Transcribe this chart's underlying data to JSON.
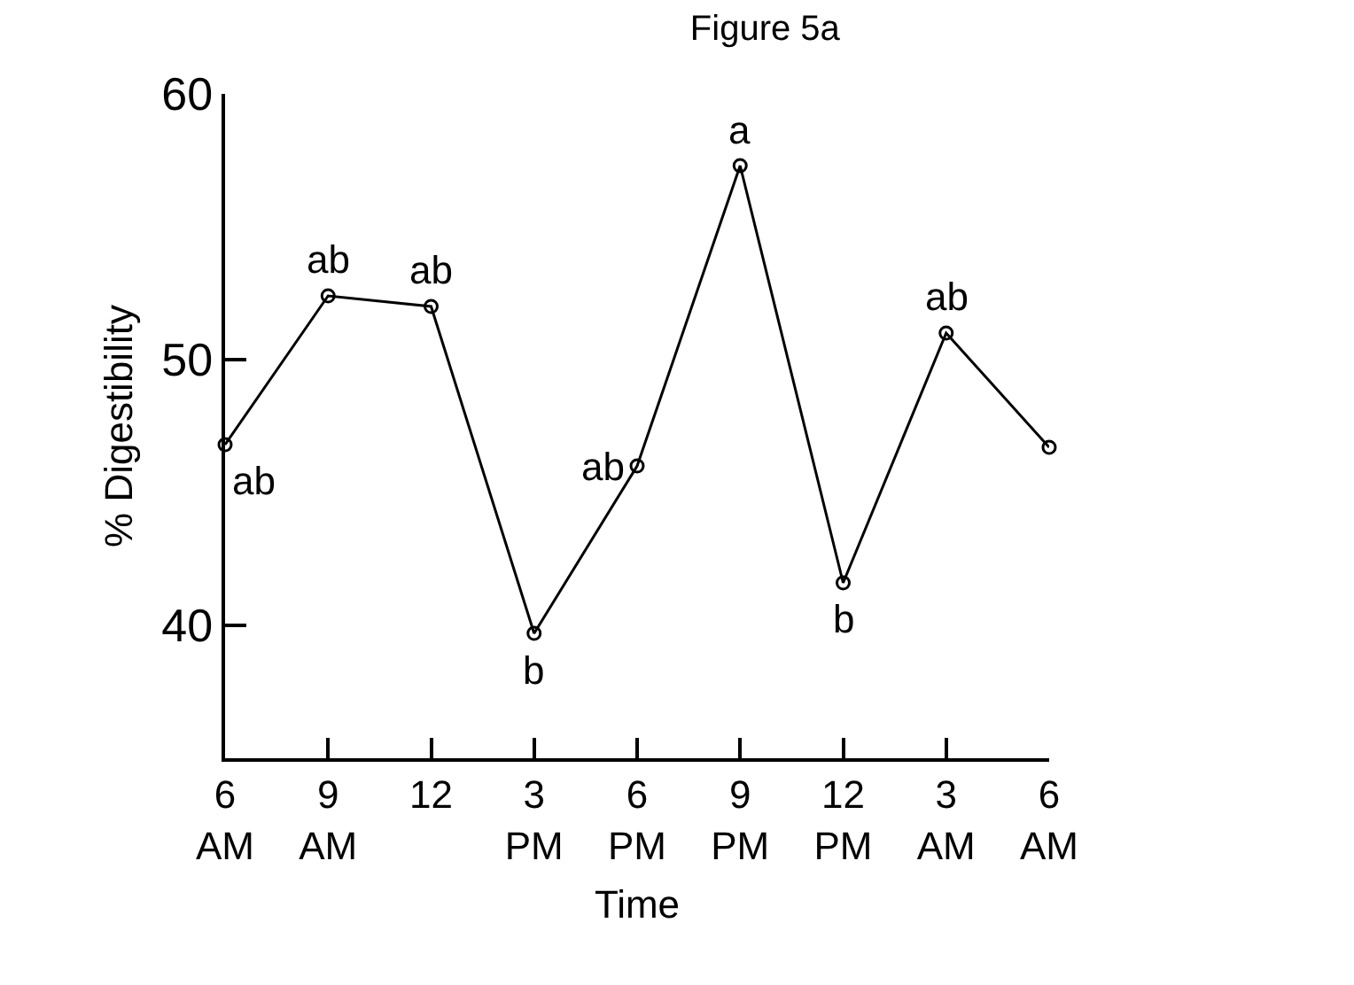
{
  "chart_data": {
    "type": "line",
    "title": "Figure 5a",
    "xlabel": "Time",
    "ylabel": "% Digestibility",
    "categories": [
      "6\nAM",
      "9\nAM",
      "12",
      "3\nPM",
      "6\nPM",
      "9\nPM",
      "12\nPM",
      "3\nAM",
      "6\nAM"
    ],
    "series": [
      {
        "color": "#000000",
        "values": [
          46.8,
          52.4,
          52.0,
          39.7,
          46.0,
          57.3,
          41.6,
          51.0,
          46.7
        ]
      }
    ],
    "ylim": [
      35,
      60
    ],
    "yticks": [
      40,
      50,
      60
    ],
    "legend": false,
    "marker": "circle",
    "line_style": "solid",
    "annotations": [
      {
        "text": "ab",
        "x": "6\nAM",
        "y": 46.8
      },
      {
        "text": "ab",
        "x": "9\nAM",
        "y": 52.4
      },
      {
        "text": "ab",
        "x": "12",
        "y": 52.0
      },
      {
        "text": "b",
        "x": "3\nPM",
        "y": 39.7
      },
      {
        "text": "ab",
        "x": "6\nPM",
        "y": 46.0
      },
      {
        "text": "a",
        "x": "9\nPM",
        "y": 57.3
      },
      {
        "text": "b",
        "x": "12\nPM",
        "y": 41.6
      },
      {
        "text": "ab",
        "x": "3\nAM",
        "y": 51.0
      }
    ]
  }
}
